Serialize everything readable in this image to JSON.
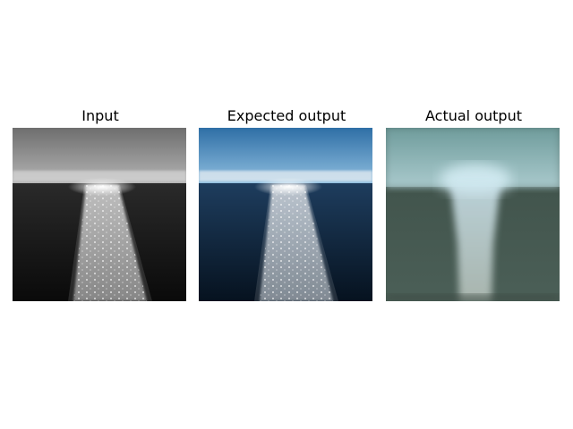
{
  "figure": {
    "panels": [
      {
        "title": "Input"
      },
      {
        "title": "Expected output"
      },
      {
        "title": "Actual output"
      }
    ]
  }
}
